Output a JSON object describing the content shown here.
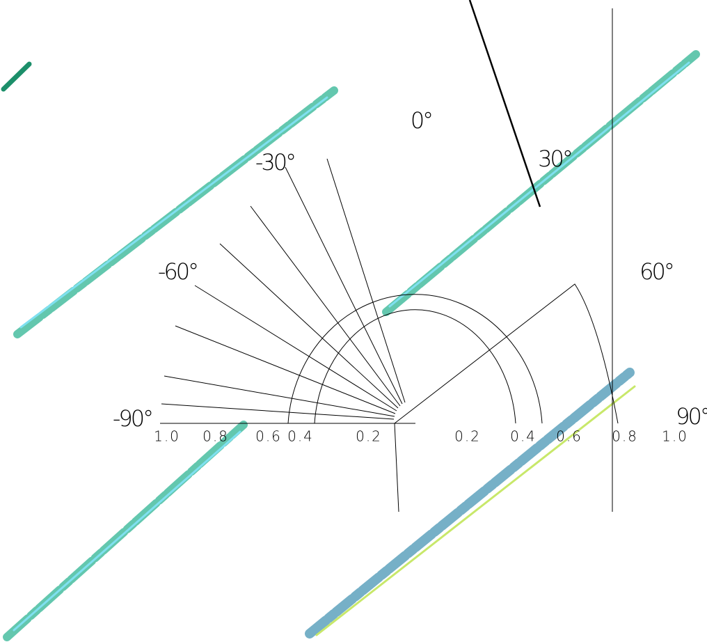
{
  "angle_labels": [
    "0°",
    "30°",
    "-30°",
    "-60°",
    "60°",
    "-90°",
    "90°"
  ],
  "radial_labels": {
    "left": [
      "1.0",
      "0.8",
      "0.6",
      "0.4",
      "0.2"
    ],
    "right": [
      "0.2",
      "0.4",
      "0.6",
      "0.8",
      "1.0"
    ]
  }
}
